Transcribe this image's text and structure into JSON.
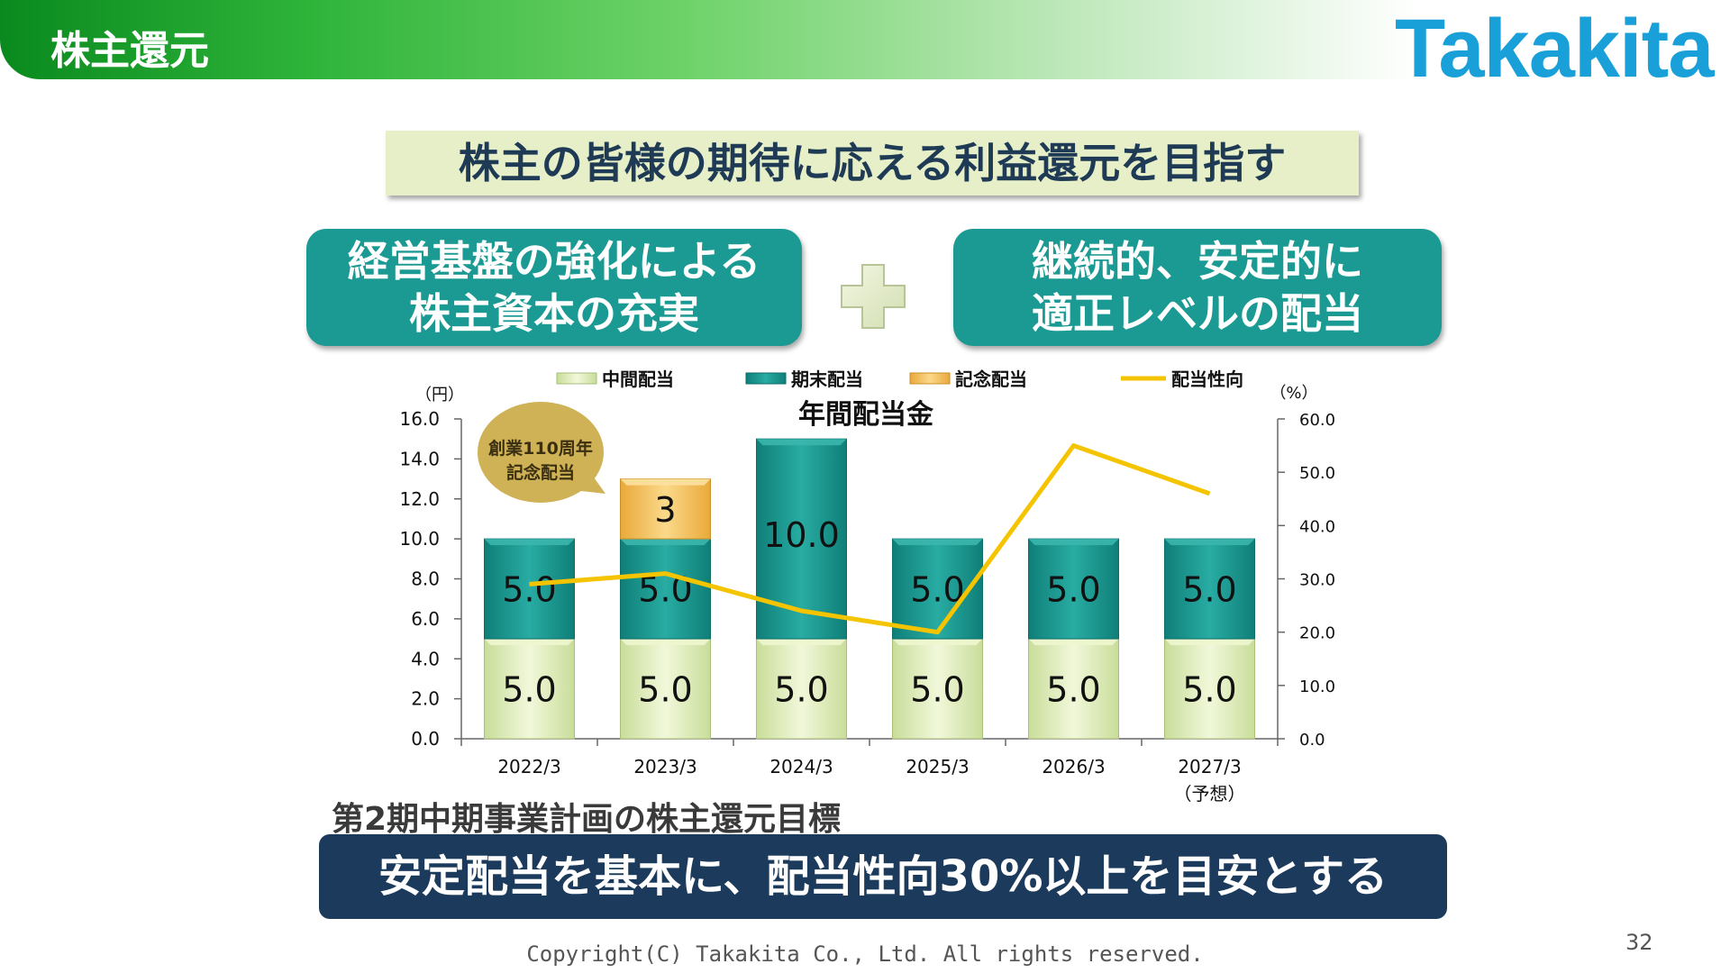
{
  "header": {
    "title": "株主還元",
    "logo": "Takakita"
  },
  "slogan": "株主の皆様の期待に応える利益還元を目指す",
  "box_left": {
    "line1": "経営基盤の強化による",
    "line2": "株主資本の充実"
  },
  "box_right": {
    "line1": "継続的、安定的に",
    "line2": "適正レベルの配当"
  },
  "callout": {
    "line1": "創業110周年",
    "line2": "記念配当"
  },
  "target_label": "第2期中期事業計画の株主還元目標",
  "target_text": "安定配当を基本に、配当性向30%以上を目安とする",
  "copyright": "Copyright(C) Takakita Co., Ltd. All rights reserved.",
  "page_number": "32",
  "colors": {
    "interim": "#dcedb0",
    "year_end": "#1a9a92",
    "commemorative": "#f4c35c",
    "payout": "#f5c400",
    "navy": "#1b3a5c"
  },
  "chart_data": {
    "type": "bar",
    "title": "年間配当金",
    "left_unit": "（円）",
    "right_unit": "（%）",
    "categories": [
      "2022/3",
      "2023/3",
      "2024/3",
      "2025/3",
      "2026/3",
      "2027/3"
    ],
    "category_notes": [
      "",
      "",
      "",
      "",
      "",
      "（予想）"
    ],
    "ylim": [
      0,
      16
    ],
    "y_ticks": [
      "0.0",
      "2.0",
      "4.0",
      "6.0",
      "8.0",
      "10.0",
      "12.0",
      "14.0",
      "16.0"
    ],
    "y2lim": [
      0,
      60
    ],
    "y2_ticks": [
      "0.0",
      "10.0",
      "20.0",
      "30.0",
      "40.0",
      "50.0",
      "60.0"
    ],
    "stacked": true,
    "legend_position": "top",
    "series": [
      {
        "name": "中間配当",
        "values": [
          5,
          5,
          5,
          5,
          5,
          5
        ],
        "labels": [
          "5.0",
          "5.0",
          "5.0",
          "5.0",
          "5.0",
          "5.0"
        ]
      },
      {
        "name": "期末配当",
        "values": [
          5,
          5,
          10,
          5,
          5,
          5
        ],
        "labels": [
          "5.0",
          "5.0",
          "10.0",
          "5.0",
          "5.0",
          "5.0"
        ]
      },
      {
        "name": "記念配当",
        "values": [
          0,
          3,
          0,
          0,
          0,
          0
        ],
        "labels": [
          "",
          "3",
          "",
          "",
          "",
          ""
        ]
      },
      {
        "name": "配当性向",
        "type": "line",
        "axis": "right",
        "values": [
          29,
          31,
          24,
          20,
          55,
          46
        ]
      }
    ]
  }
}
